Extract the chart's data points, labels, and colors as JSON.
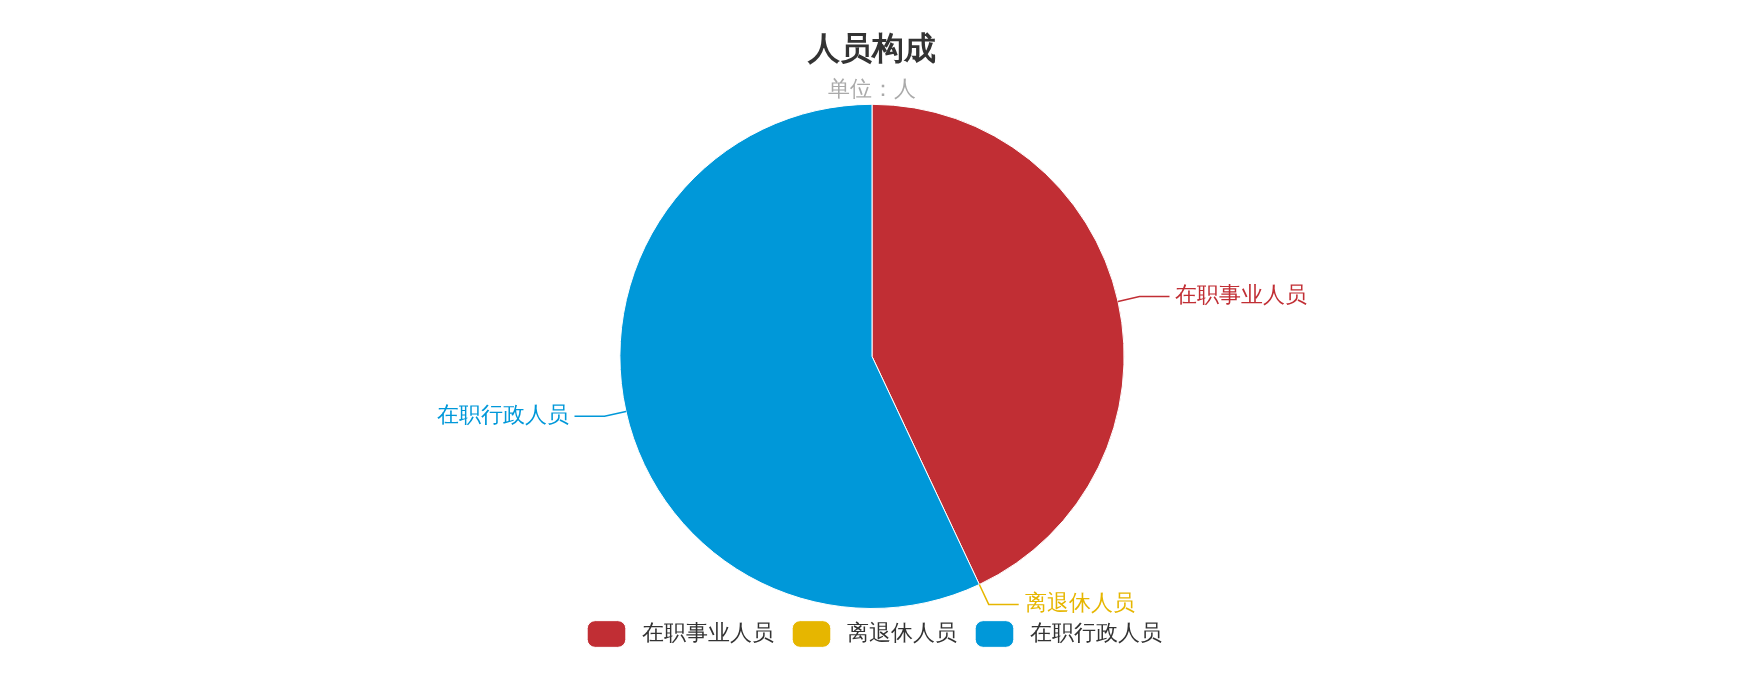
{
  "chart_data": {
    "type": "pie",
    "title": "人员构成",
    "subtitle": "单位：人",
    "categories": [
      "在职事业人员",
      "离退休人员",
      "在职行政人员"
    ],
    "values": [
      43,
      0,
      57
    ],
    "colors": [
      "#c12e34",
      "#e6b600",
      "#0098d9"
    ],
    "legend": "bottom"
  }
}
